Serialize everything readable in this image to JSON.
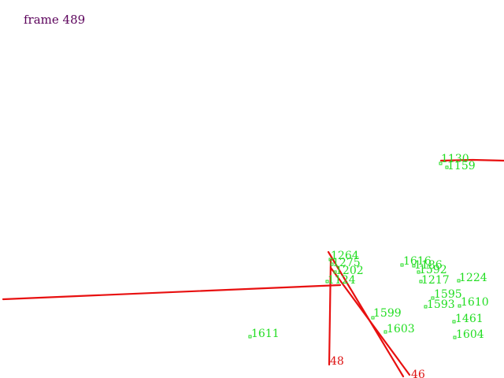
{
  "frame": {
    "label": "frame 489"
  },
  "colors": {
    "background": "#ffffff",
    "frame_text": "#5a005a",
    "points": "#22dd22",
    "tracks": "#e81010"
  },
  "track_labels": [
    "48",
    "46"
  ],
  "point_labels": [
    "1130",
    "1159",
    "1264",
    "1275",
    "1202",
    "1124",
    "1616",
    "1186",
    "1592",
    "1217",
    "1224",
    "1595",
    "1593",
    "1610",
    "1599",
    "1603",
    "1461",
    "1604",
    "1611"
  ]
}
